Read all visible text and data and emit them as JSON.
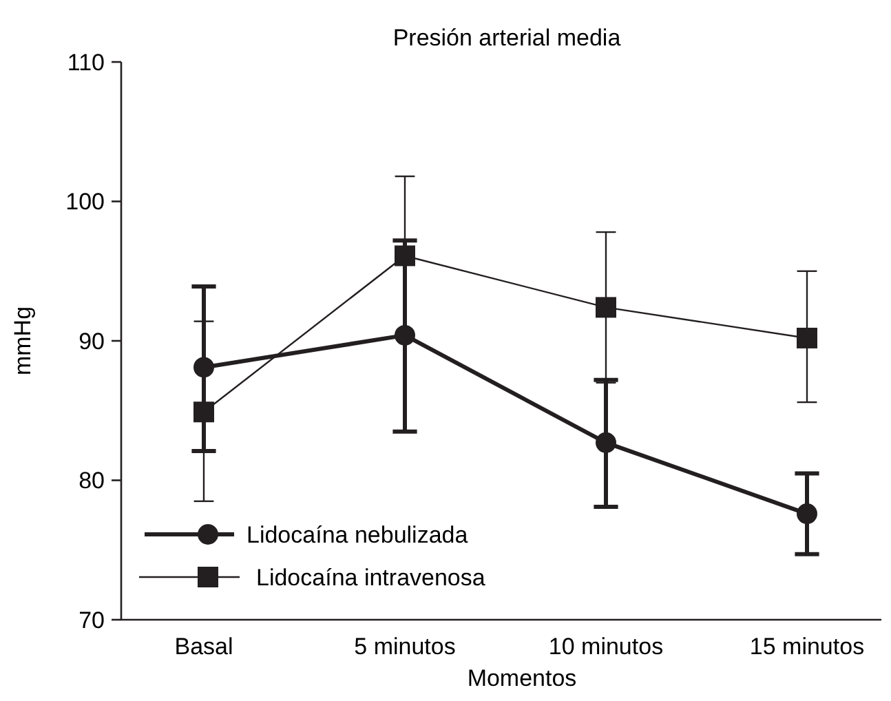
{
  "chart_data": {
    "type": "line",
    "title": "Presión arterial media",
    "xlabel": "Momentos",
    "ylabel": "mmHg",
    "categories": [
      "Basal",
      "5 minutos",
      "10 minutos",
      "15 minutos"
    ],
    "ylim": [
      70,
      110
    ],
    "yticks": [
      70,
      80,
      90,
      100,
      110
    ],
    "legend": "bottom left",
    "grid": false,
    "series": [
      {
        "name": "Lidocaína nebulizada",
        "color": "#231f20",
        "marker": "circle",
        "values": [
          88.1,
          90.4,
          82.7,
          77.6
        ],
        "errors": [
          [
            82.1,
            93.9
          ],
          [
            83.5,
            97.2
          ],
          [
            78.1,
            87.2
          ],
          [
            74.7,
            80.5
          ]
        ]
      },
      {
        "name": "Lidocaína intravenosa",
        "color": "#231f20",
        "marker": "square",
        "values": [
          84.9,
          96.1,
          92.4,
          90.2
        ],
        "errors": [
          [
            78.5,
            91.4
          ],
          [
            96.1,
            101.8
          ],
          [
            87.0,
            97.8
          ],
          [
            85.6,
            95.0
          ]
        ]
      }
    ]
  }
}
